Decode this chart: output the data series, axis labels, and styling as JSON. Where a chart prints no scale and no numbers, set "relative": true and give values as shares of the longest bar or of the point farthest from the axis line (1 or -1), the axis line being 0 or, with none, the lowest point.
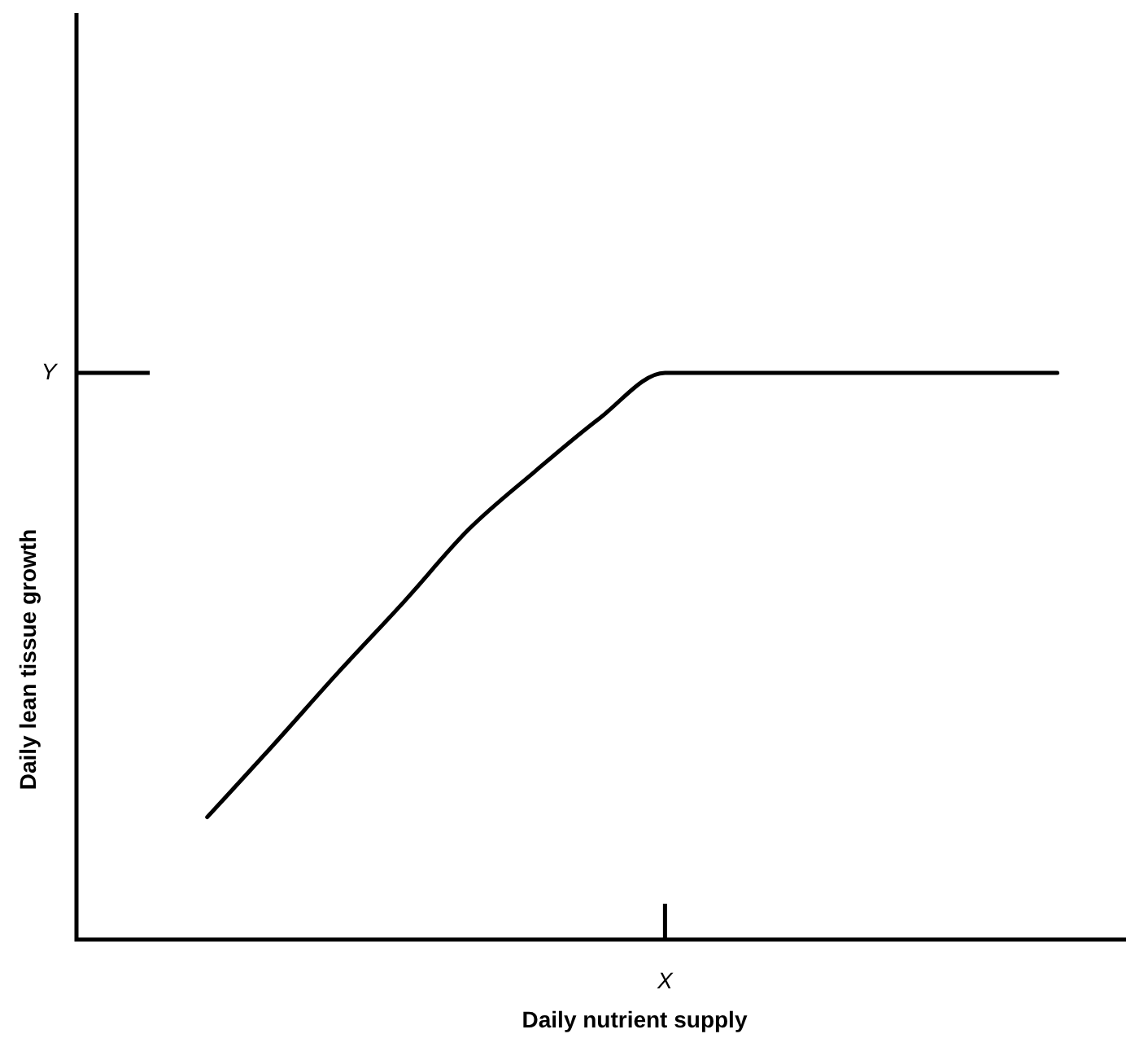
{
  "chart_data": {
    "type": "line",
    "relative": true,
    "xlabel": "Daily nutrient supply",
    "ylabel": "Daily lean tissue growth",
    "categories": [
      null,
      null,
      null,
      null,
      null,
      null,
      null,
      null,
      null,
      null,
      null,
      null,
      null,
      null,
      null,
      null,
      null
    ],
    "series": [
      {
        "color": "#000000",
        "values": [
          null,
          null,
          0.216,
          0.342,
          0.471,
          0.595,
          0.724,
          0.825,
          0.92,
          1,
          1,
          1,
          1,
          1,
          1,
          1,
          null
        ]
      }
    ],
    "annotations": [
      "Y",
      "X"
    ],
    "marker": "none",
    "line_style": "solid"
  }
}
